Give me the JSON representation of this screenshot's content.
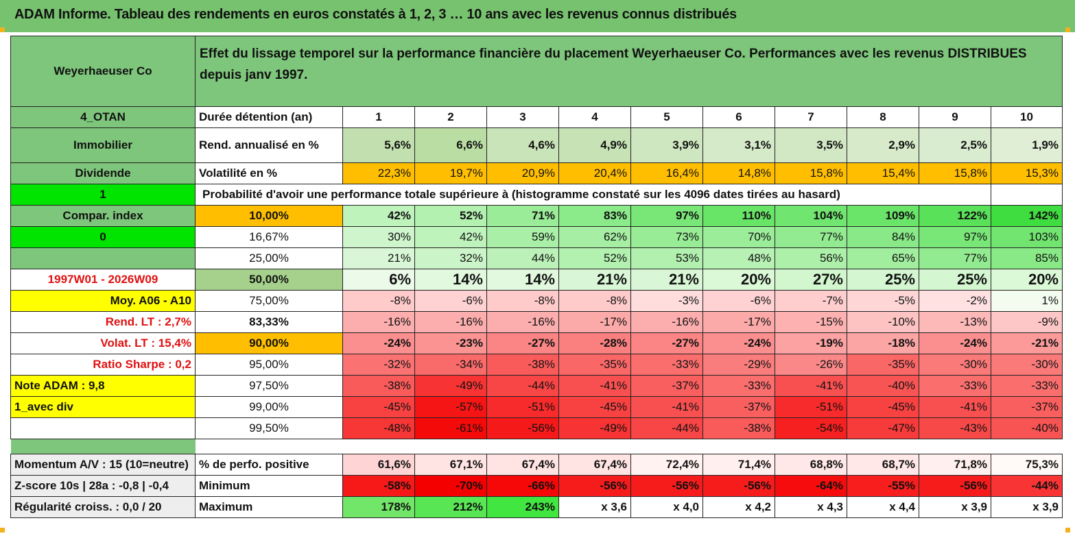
{
  "title": "ADAM Informe. Tableau des rendements en euros constatés à 1, 2, 3 … 10 ans avec les revenus connus distribués",
  "header": {
    "asset": "Weyerhaeuser Co",
    "description": "Effet du lissage temporel sur la performance financière du placement Weyerhaeuser Co. Performances avec les revenus DISTRIBUES depuis janv 1997."
  },
  "durations": {
    "side": "4_OTAN",
    "label": "Durée détention (an)",
    "years": [
      "1",
      "2",
      "3",
      "4",
      "5",
      "6",
      "7",
      "8",
      "9",
      "10"
    ]
  },
  "returns": {
    "side": "Immobilier",
    "label": "Rend. annualisé en %",
    "values": [
      "5,6%",
      "6,6%",
      "4,6%",
      "4,9%",
      "3,9%",
      "3,1%",
      "3,5%",
      "2,9%",
      "2,5%",
      "1,9%"
    ]
  },
  "volatility": {
    "side": "Dividende",
    "label": "Volatilité en %",
    "values": [
      "22,3%",
      "19,7%",
      "20,9%",
      "20,4%",
      "16,4%",
      "14,8%",
      "15,8%",
      "15,4%",
      "15,8%",
      "15,3%"
    ]
  },
  "probability_header": {
    "side": "1",
    "text": "Probabilité d'avoir une performance totale supérieure à (histogramme constaté sur les 4096 dates tirées au hasard)"
  },
  "percentile_rows": [
    {
      "side": "Compar. index",
      "pct": "10,00%",
      "values": [
        "42%",
        "52%",
        "71%",
        "83%",
        "97%",
        "110%",
        "104%",
        "109%",
        "122%",
        "142%"
      ]
    },
    {
      "side": "0",
      "pct": "16,67%",
      "values": [
        "30%",
        "42%",
        "59%",
        "62%",
        "73%",
        "70%",
        "77%",
        "84%",
        "97%",
        "103%"
      ]
    },
    {
      "side": "",
      "pct": "25,00%",
      "values": [
        "21%",
        "32%",
        "44%",
        "52%",
        "53%",
        "48%",
        "56%",
        "65%",
        "77%",
        "85%"
      ]
    },
    {
      "side": "1997W01 - 2026W09",
      "pct": "50,00%",
      "values": [
        "6%",
        "14%",
        "14%",
        "21%",
        "21%",
        "20%",
        "27%",
        "25%",
        "25%",
        "20%"
      ]
    },
    {
      "side": "Moy. A06 - A10",
      "pct": "75,00%",
      "values": [
        "-8%",
        "-6%",
        "-8%",
        "-8%",
        "-3%",
        "-6%",
        "-7%",
        "-5%",
        "-2%",
        "1%"
      ]
    },
    {
      "side": "Rend. LT :   2,7%",
      "pct": "83,33%",
      "values": [
        "-16%",
        "-16%",
        "-16%",
        "-17%",
        "-16%",
        "-17%",
        "-15%",
        "-10%",
        "-13%",
        "-9%"
      ]
    },
    {
      "side": "Volat. LT :   15,4%",
      "pct": "90,00%",
      "values": [
        "-24%",
        "-23%",
        "-27%",
        "-28%",
        "-27%",
        "-24%",
        "-19%",
        "-18%",
        "-24%",
        "-21%"
      ]
    },
    {
      "side": "Ratio Sharpe :    0,2",
      "pct": "95,00%",
      "values": [
        "-32%",
        "-34%",
        "-38%",
        "-35%",
        "-33%",
        "-29%",
        "-26%",
        "-35%",
        "-30%",
        "-30%"
      ]
    },
    {
      "side": "Note ADAM : 9,8",
      "pct": "97,50%",
      "values": [
        "-38%",
        "-49%",
        "-44%",
        "-41%",
        "-37%",
        "-33%",
        "-41%",
        "-40%",
        "-33%",
        "-33%"
      ]
    },
    {
      "side": "1_avec div",
      "pct": "99,00%",
      "values": [
        "-45%",
        "-57%",
        "-51%",
        "-45%",
        "-41%",
        "-37%",
        "-51%",
        "-45%",
        "-41%",
        "-37%"
      ]
    },
    {
      "side": "",
      "pct": "99,50%",
      "values": [
        "-48%",
        "-61%",
        "-56%",
        "-49%",
        "-44%",
        "-38%",
        "-54%",
        "-47%",
        "-43%",
        "-40%"
      ]
    }
  ],
  "summary_rows": [
    {
      "side": "Momentum A/V : 15 (10=neutre)",
      "label": "% de perfo. positive",
      "values": [
        "61,6%",
        "67,1%",
        "67,4%",
        "67,4%",
        "72,4%",
        "71,4%",
        "68,8%",
        "68,7%",
        "71,8%",
        "75,3%"
      ]
    },
    {
      "side": "Z-score 10s | 28a : -0,8 | -0,4",
      "label": "Minimum",
      "values": [
        "-58%",
        "-70%",
        "-66%",
        "-56%",
        "-56%",
        "-56%",
        "-64%",
        "-55%",
        "-56%",
        "-44%"
      ]
    },
    {
      "side": "Régularité croiss. : 0,0 / 20",
      "label": "Maximum",
      "values": [
        "178%",
        "212%",
        "243%",
        "x 3,6",
        "x 4,0",
        "x 4,2",
        "x 4,3",
        "x 4,4",
        "x 3,9",
        "x 3,9"
      ]
    }
  ],
  "colors": {
    "header_green": "#7ec67b",
    "orange": "#ffbf00",
    "bright_green": "#00e400",
    "yellow": "#ffff00",
    "label_red": "#e01010"
  }
}
